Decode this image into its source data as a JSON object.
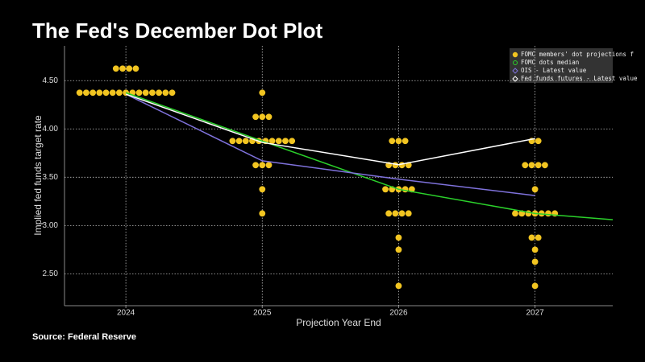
{
  "chart_data": {
    "type": "dot_plot",
    "title": "The Fed's December Dot Plot",
    "source": "Source: Federal Reserve",
    "x_label": "Projection Year End",
    "y_label": "Implied fed funds target rate",
    "xlim": [
      2023.55,
      2027.57
    ],
    "xticks": [
      2024,
      2025,
      2026,
      2027
    ],
    "ylim": [
      2.17,
      4.86
    ],
    "yticks": [
      {
        "value": 2.5,
        "label": "2.50"
      },
      {
        "value": 3.0,
        "label": "3.00"
      },
      {
        "value": 3.5,
        "label": "3.50"
      },
      {
        "value": 4.0,
        "label": "4.00"
      },
      {
        "value": 4.5,
        "label": "4.50"
      }
    ],
    "grid": true,
    "legend_position": "top-right",
    "series": [
      {
        "name": "FOMC members' dot projections f",
        "kind": "dots",
        "color": "#f2c521",
        "x": [
          2024,
          2024,
          2024,
          2024,
          2024,
          2024,
          2024,
          2024,
          2024,
          2024,
          2024,
          2024,
          2024,
          2024,
          2024,
          2024,
          2024,
          2024,
          2024,
          2025,
          2025,
          2025,
          2025,
          2025,
          2025,
          2025,
          2025,
          2025,
          2025,
          2025,
          2025,
          2025,
          2025,
          2025,
          2025,
          2025,
          2025,
          2025,
          2026,
          2026,
          2026,
          2026,
          2026,
          2026,
          2026,
          2026,
          2026,
          2026,
          2026,
          2026,
          2026,
          2026,
          2026,
          2026,
          2026,
          2026,
          2026,
          2027,
          2027,
          2027,
          2027,
          2027,
          2027,
          2027,
          2027,
          2027,
          2027,
          2027,
          2027,
          2027,
          2027,
          2027,
          2027,
          2027,
          2027,
          2027
        ],
        "values": [
          4.625,
          4.625,
          4.625,
          4.625,
          4.375,
          4.375,
          4.375,
          4.375,
          4.375,
          4.375,
          4.375,
          4.375,
          4.375,
          4.375,
          4.375,
          4.375,
          4.375,
          4.375,
          4.375,
          4.375,
          4.125,
          4.125,
          4.125,
          3.875,
          3.875,
          3.875,
          3.875,
          3.875,
          3.875,
          3.875,
          3.875,
          3.875,
          3.875,
          3.625,
          3.625,
          3.625,
          3.375,
          3.125,
          3.875,
          3.875,
          3.875,
          3.625,
          3.625,
          3.625,
          3.625,
          3.375,
          3.375,
          3.375,
          3.375,
          3.375,
          3.125,
          3.125,
          3.125,
          3.125,
          2.875,
          2.75,
          2.375,
          3.875,
          3.875,
          3.625,
          3.625,
          3.625,
          3.625,
          3.375,
          3.125,
          3.125,
          3.125,
          3.125,
          3.125,
          3.125,
          3.125,
          2.875,
          2.875,
          2.75,
          2.625,
          2.375
        ]
      },
      {
        "name": "FOMC dots median",
        "kind": "line",
        "marker": "circle",
        "color": "#2bd12b",
        "x": [
          2024,
          2025,
          2026,
          2027,
          2027.57
        ],
        "values": [
          4.375,
          3.875,
          3.375,
          3.125,
          3.06
        ]
      },
      {
        "name": "OIS - Latest value",
        "kind": "line",
        "marker": "diamond",
        "color": "#7f72dc",
        "x": [
          2024,
          2025,
          2026,
          2027
        ],
        "values": [
          4.36,
          3.67,
          3.48,
          3.31
        ]
      },
      {
        "name": "Fed funds futures - Latest value",
        "kind": "line",
        "marker": "diamond",
        "color": "#ffffff",
        "x": [
          2024,
          2025,
          2026,
          2027
        ],
        "values": [
          4.36,
          3.86,
          3.63,
          3.9
        ]
      }
    ]
  }
}
